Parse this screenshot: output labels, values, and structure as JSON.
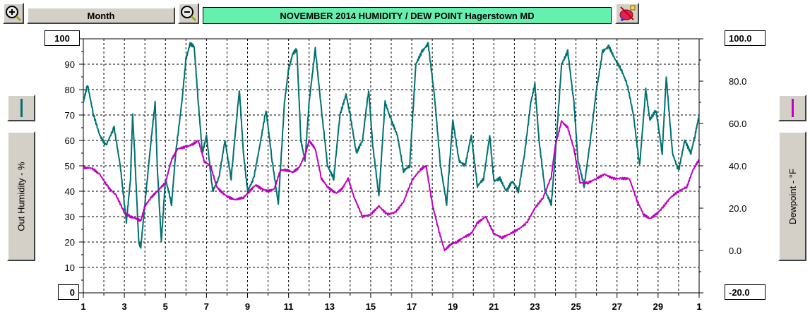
{
  "toolbar": {
    "zoom_in_icon": "zoom-in-magnifier",
    "zoom_out_icon": "zoom-out-magnifier",
    "period_label": "Month",
    "title": "NOVEMBER  2014  HUMIDITY / DEW POINT  Hagerstown MD",
    "paint_icon": "paint-palette"
  },
  "left_axis": {
    "max_box": "100",
    "min_box": "0",
    "label": "Out Humidity - %",
    "color": "#007070"
  },
  "right_axis": {
    "max_box": "100.0",
    "min_box": "-20.0",
    "label": "Dewpoint - °F",
    "color": "#c000c0"
  },
  "chart_data": {
    "type": "line",
    "title": "NOVEMBER  2014  HUMIDITY / DEW POINT  Hagerstown MD",
    "x_tick_labels": [
      "1",
      "3",
      "5",
      "7",
      "9",
      "11",
      "13",
      "15",
      "17",
      "19",
      "21",
      "23",
      "25",
      "27",
      "29",
      "1"
    ],
    "y_left_ticks": [
      "100",
      "90",
      "80",
      "70",
      "60",
      "50",
      "40",
      "30",
      "20",
      "10",
      "0"
    ],
    "y_right_ticks": [
      "100.0",
      "80.0",
      "60.0",
      "40.0",
      "20.0",
      "0.0",
      "-20.0"
    ],
    "ylabel_left": "Out Humidity - %",
    "ylabel_right": "Dewpoint - °F",
    "ylim_left": [
      0,
      100
    ],
    "ylim_right": [
      -20,
      100
    ],
    "grid": true,
    "series": [
      {
        "name": "Out Humidity - %",
        "axis": "left",
        "color": "#007070",
        "points": [
          [
            1.0,
            75
          ],
          [
            1.2,
            82
          ],
          [
            1.5,
            70
          ],
          [
            1.8,
            62
          ],
          [
            2.1,
            58
          ],
          [
            2.5,
            65
          ],
          [
            2.8,
            50
          ],
          [
            3.0,
            35
          ],
          [
            3.1,
            28
          ],
          [
            3.3,
            45
          ],
          [
            3.4,
            70
          ],
          [
            3.5,
            55
          ],
          [
            3.7,
            20
          ],
          [
            3.8,
            18
          ],
          [
            4.0,
            35
          ],
          [
            4.3,
            60
          ],
          [
            4.5,
            75
          ],
          [
            4.6,
            50
          ],
          [
            4.8,
            20
          ],
          [
            5.0,
            45
          ],
          [
            5.3,
            35
          ],
          [
            5.5,
            55
          ],
          [
            5.8,
            75
          ],
          [
            6.0,
            92
          ],
          [
            6.2,
            98
          ],
          [
            6.4,
            97
          ],
          [
            6.6,
            75
          ],
          [
            6.8,
            55
          ],
          [
            7.0,
            62
          ],
          [
            7.3,
            40
          ],
          [
            7.6,
            45
          ],
          [
            7.9,
            60
          ],
          [
            8.2,
            45
          ],
          [
            8.6,
            80
          ],
          [
            8.8,
            55
          ],
          [
            9.0,
            40
          ],
          [
            9.3,
            45
          ],
          [
            9.6,
            58
          ],
          [
            9.9,
            72
          ],
          [
            10.2,
            52
          ],
          [
            10.5,
            35
          ],
          [
            10.8,
            75
          ],
          [
            11.0,
            88
          ],
          [
            11.2,
            94
          ],
          [
            11.4,
            96
          ],
          [
            11.6,
            60
          ],
          [
            11.8,
            52
          ],
          [
            12.0,
            75
          ],
          [
            12.3,
            96
          ],
          [
            12.6,
            72
          ],
          [
            12.9,
            50
          ],
          [
            13.2,
            45
          ],
          [
            13.5,
            70
          ],
          [
            13.8,
            78
          ],
          [
            14.0,
            70
          ],
          [
            14.3,
            55
          ],
          [
            14.6,
            60
          ],
          [
            14.9,
            80
          ],
          [
            15.1,
            58
          ],
          [
            15.4,
            38
          ],
          [
            15.7,
            75
          ],
          [
            16.0,
            68
          ],
          [
            16.3,
            62
          ],
          [
            16.6,
            48
          ],
          [
            16.9,
            50
          ],
          [
            17.2,
            90
          ],
          [
            17.5,
            95
          ],
          [
            17.8,
            98
          ],
          [
            18.1,
            78
          ],
          [
            18.4,
            50
          ],
          [
            18.7,
            35
          ],
          [
            19.0,
            68
          ],
          [
            19.3,
            52
          ],
          [
            19.6,
            50
          ],
          [
            19.9,
            62
          ],
          [
            20.2,
            42
          ],
          [
            20.5,
            45
          ],
          [
            20.8,
            62
          ],
          [
            21.0,
            44
          ],
          [
            21.3,
            45
          ],
          [
            21.6,
            40
          ],
          [
            21.9,
            44
          ],
          [
            22.2,
            40
          ],
          [
            22.5,
            55
          ],
          [
            22.8,
            75
          ],
          [
            23.0,
            82
          ],
          [
            23.2,
            60
          ],
          [
            23.5,
            40
          ],
          [
            23.8,
            35
          ],
          [
            24.0,
            55
          ],
          [
            24.3,
            90
          ],
          [
            24.6,
            95
          ],
          [
            24.9,
            75
          ],
          [
            25.1,
            52
          ],
          [
            25.4,
            42
          ],
          [
            25.7,
            60
          ],
          [
            26.0,
            80
          ],
          [
            26.3,
            95
          ],
          [
            26.6,
            97
          ],
          [
            26.9,
            92
          ],
          [
            27.2,
            88
          ],
          [
            27.5,
            82
          ],
          [
            27.8,
            70
          ],
          [
            28.1,
            50
          ],
          [
            28.4,
            80
          ],
          [
            28.6,
            68
          ],
          [
            28.9,
            72
          ],
          [
            29.2,
            55
          ],
          [
            29.4,
            85
          ],
          [
            29.7,
            55
          ],
          [
            30.0,
            48
          ],
          [
            30.3,
            60
          ],
          [
            30.6,
            55
          ],
          [
            30.8,
            62
          ],
          [
            31.0,
            70
          ]
        ]
      },
      {
        "name": "Dewpoint - °F",
        "axis": "right",
        "color": "#c000c0",
        "points": [
          [
            1.0,
            39
          ],
          [
            1.4,
            39
          ],
          [
            1.8,
            36
          ],
          [
            2.2,
            30
          ],
          [
            2.6,
            26
          ],
          [
            3.0,
            18
          ],
          [
            3.3,
            16
          ],
          [
            3.6,
            15
          ],
          [
            3.8,
            14
          ],
          [
            4.0,
            21
          ],
          [
            4.3,
            25
          ],
          [
            4.6,
            28
          ],
          [
            5.0,
            32
          ],
          [
            5.3,
            43
          ],
          [
            5.6,
            48
          ],
          [
            6.0,
            49
          ],
          [
            6.3,
            50
          ],
          [
            6.6,
            52
          ],
          [
            6.9,
            42
          ],
          [
            7.2,
            40
          ],
          [
            7.5,
            30
          ],
          [
            7.8,
            27
          ],
          [
            8.1,
            25
          ],
          [
            8.4,
            24
          ],
          [
            8.8,
            25
          ],
          [
            9.1,
            28
          ],
          [
            9.4,
            31
          ],
          [
            9.7,
            29
          ],
          [
            10.0,
            28
          ],
          [
            10.3,
            29
          ],
          [
            10.6,
            38
          ],
          [
            10.9,
            38
          ],
          [
            11.2,
            37
          ],
          [
            11.5,
            39
          ],
          [
            11.8,
            45
          ],
          [
            12.0,
            52
          ],
          [
            12.3,
            48
          ],
          [
            12.6,
            34
          ],
          [
            12.9,
            30
          ],
          [
            13.3,
            27
          ],
          [
            13.6,
            29
          ],
          [
            13.9,
            34
          ],
          [
            14.2,
            25
          ],
          [
            14.6,
            16
          ],
          [
            15.0,
            17
          ],
          [
            15.4,
            21
          ],
          [
            15.8,
            17
          ],
          [
            16.2,
            18
          ],
          [
            16.6,
            23
          ],
          [
            17.0,
            33
          ],
          [
            17.4,
            38
          ],
          [
            17.7,
            40
          ],
          [
            18.0,
            22
          ],
          [
            18.3,
            10
          ],
          [
            18.6,
            0
          ],
          [
            18.9,
            3
          ],
          [
            19.2,
            4
          ],
          [
            19.5,
            6
          ],
          [
            19.9,
            8
          ],
          [
            20.2,
            13
          ],
          [
            20.6,
            16
          ],
          [
            21.0,
            8
          ],
          [
            21.4,
            6
          ],
          [
            21.8,
            8
          ],
          [
            22.2,
            10
          ],
          [
            22.6,
            13
          ],
          [
            23.0,
            20
          ],
          [
            23.4,
            25
          ],
          [
            23.8,
            35
          ],
          [
            24.0,
            50
          ],
          [
            24.3,
            61
          ],
          [
            24.6,
            58
          ],
          [
            24.9,
            48
          ],
          [
            25.2,
            32
          ],
          [
            25.6,
            32
          ],
          [
            26.0,
            34
          ],
          [
            26.4,
            36
          ],
          [
            26.8,
            34
          ],
          [
            27.2,
            34
          ],
          [
            27.6,
            34
          ],
          [
            28.0,
            23
          ],
          [
            28.3,
            17
          ],
          [
            28.6,
            15
          ],
          [
            28.9,
            17
          ],
          [
            29.2,
            20
          ],
          [
            29.6,
            25
          ],
          [
            30.0,
            28
          ],
          [
            30.4,
            30
          ],
          [
            30.7,
            38
          ],
          [
            31.0,
            43
          ]
        ]
      }
    ]
  }
}
